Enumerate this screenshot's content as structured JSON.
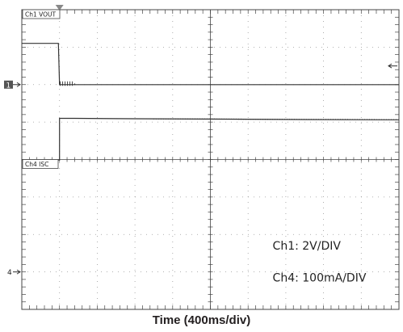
{
  "chart_data": {
    "type": "line",
    "title": "",
    "xlabel": "Time (400ms/div)",
    "ylabel": "",
    "grid": true,
    "x_divisions": 10,
    "y_divisions": 8,
    "x_range_div": [
      0,
      10
    ],
    "y_range_div": [
      0,
      8
    ],
    "trigger_x_div": 1.0,
    "series": [
      {
        "name": "Ch1 VOUT",
        "marker_label": "1",
        "ground_div": 6.0,
        "points_div": [
          [
            0,
            7.1
          ],
          [
            0.97,
            7.1
          ],
          [
            1.0,
            6.0
          ],
          [
            1.45,
            6.0
          ],
          [
            10,
            6.0
          ]
        ],
        "noise_x_div": [
          1.02,
          1.45
        ]
      },
      {
        "name": "Ch4 ISC",
        "marker_label": "4",
        "ground_div": 1.0,
        "points_div": [
          [
            0,
            3.99
          ],
          [
            1.0,
            3.99
          ],
          [
            1.0,
            5.1
          ],
          [
            1.4,
            5.1
          ],
          [
            3.0,
            5.09
          ],
          [
            5.0,
            5.08
          ],
          [
            7.0,
            5.07
          ],
          [
            10,
            5.06
          ]
        ],
        "noise_x_div": [
          3.5,
          10
        ]
      }
    ],
    "annotations": [
      {
        "text": "Ch1:  2V/DIV"
      },
      {
        "text": "Ch4:  100mA/DIV"
      }
    ],
    "arrow_right_div": 6.5
  },
  "colors": {
    "frame": "#444444",
    "grid": "#999999",
    "trace": "#333333",
    "marker_bg": "#555555",
    "trigger": "#888888"
  }
}
